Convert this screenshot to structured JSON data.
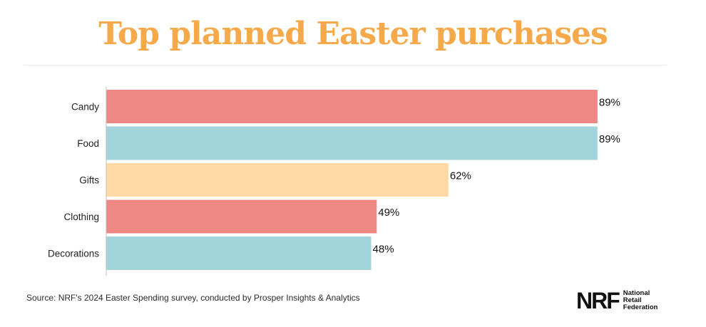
{
  "chart_data": {
    "type": "bar",
    "orientation": "horizontal",
    "title": "Top planned Easter purchases",
    "categories": [
      "Candy",
      "Food",
      "Gifts",
      "Clothing",
      "Decorations"
    ],
    "values": [
      89,
      89,
      62,
      49,
      48
    ],
    "data_labels": [
      "89%",
      "89%",
      "62%",
      "49%",
      "48%"
    ],
    "bar_colors": [
      "#ee8884",
      "#a2d4db",
      "#ffd9a5",
      "#ee8884",
      "#a2d4db"
    ],
    "xlim": [
      0,
      100
    ],
    "xlabel": "",
    "ylabel": "",
    "grid": false
  },
  "title_color": "#f5a94a",
  "source": "Source: NRF's 2024 Easter Spending survey, conducted by Prosper Insights & Analytics",
  "logo": {
    "mark": "NRF",
    "line1": "National",
    "line2": "Retail",
    "line3": "Federation"
  }
}
